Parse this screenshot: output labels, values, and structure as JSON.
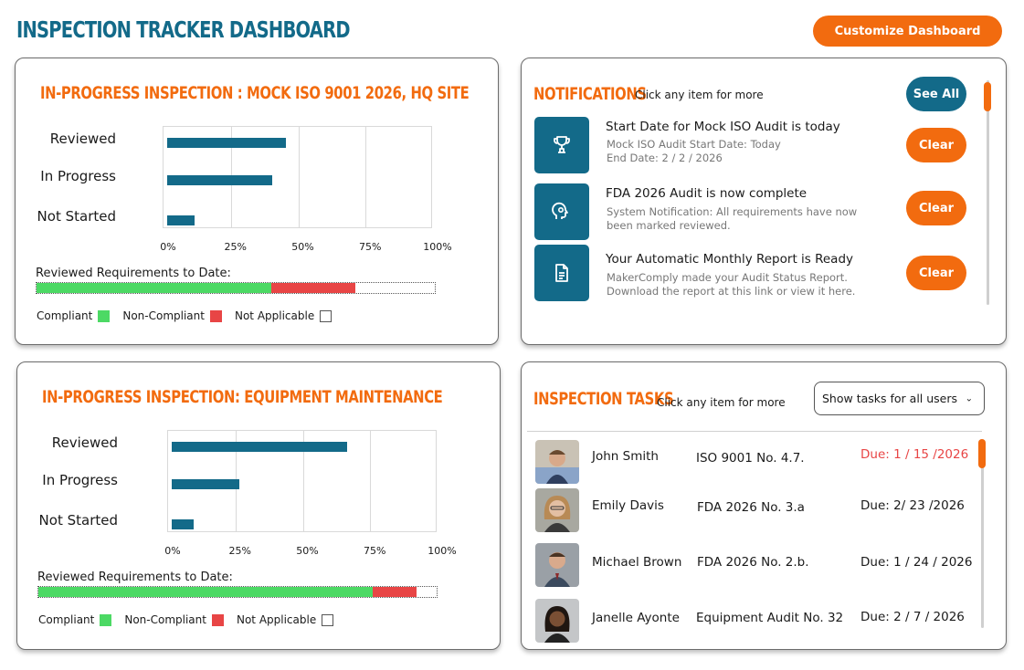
{
  "header": {
    "title": "INSPECTION TRACKER DASHBOARD",
    "customize_label": "Customize Dashboard"
  },
  "colors": {
    "brand_teal": "#136a89",
    "accent_orange": "#f26b0f",
    "compliant_green": "#4cd964",
    "non_compliant_red": "#e84545",
    "overdue_red": "#e84545"
  },
  "chart_data": [
    {
      "type": "bar",
      "orientation": "horizontal",
      "title": "IN-PROGRESS INSPECTION : MOCK ISO 9001 2026, HQ SITE",
      "categories": [
        "Reviewed",
        "In Progress",
        "Not Started"
      ],
      "values": [
        44,
        39,
        10
      ],
      "xlim": [
        0,
        100
      ],
      "x_ticks": [
        "0%",
        "25%",
        "50%",
        "75%",
        "100%"
      ],
      "grid": true,
      "requirements": {
        "label": "Reviewed Requirements to Date:",
        "compliant": 59,
        "non_compliant": 21,
        "not_applicable": 20
      },
      "legend": [
        "Compliant",
        "Non-Compliant",
        "Not Applicable"
      ]
    },
    {
      "type": "bar",
      "orientation": "horizontal",
      "title": "IN-PROGRESS INSPECTION: EQUIPMENT MAINTENANCE",
      "categories": [
        "Reviewed",
        "In Progress",
        "Not Started"
      ],
      "values": [
        65,
        25,
        8
      ],
      "xlim": [
        0,
        100
      ],
      "x_ticks": [
        "0%",
        "25%",
        "50%",
        "75%",
        "100%"
      ],
      "grid": true,
      "requirements": {
        "label": "Reviewed Requirements to Date:",
        "compliant": 84,
        "non_compliant": 11,
        "not_applicable": 5
      },
      "legend": [
        "Compliant",
        "Non-Compliant",
        "Not Applicable"
      ]
    }
  ],
  "notifications": {
    "title": "NOTIFICATIONS",
    "hint": "Click any item for more",
    "see_all_label": "See All",
    "clear_label": "Clear",
    "items": [
      {
        "icon": "trophy-icon",
        "title": "Start Date for Mock ISO Audit is today",
        "body": "Mock ISO Audit Start Date: Today\nEnd Date: 2 / 2 / 2026"
      },
      {
        "icon": "brain-gear-icon",
        "title": "FDA 2026 Audit is now complete",
        "body": "System Notification: All requirements have now been marked reviewed."
      },
      {
        "icon": "document-icon",
        "title": "Your Automatic Monthly Report is Ready",
        "body": "MakerComply made your Audit Status Report. Download the report at this link or view it here."
      }
    ]
  },
  "tasks": {
    "title": "INSPECTION TASKS",
    "hint": "Click any item for more",
    "filter_value": "Show tasks for all users",
    "rows": [
      {
        "name": "John Smith",
        "task": "ISO 9001 No. 4.7.",
        "due": "Due: 1 / 15 /2026",
        "overdue": true
      },
      {
        "name": "Emily Davis",
        "task": "FDA 2026 No. 3.a",
        "due": "Due: 2/ 23 /2026",
        "overdue": false
      },
      {
        "name": "Michael Brown",
        "task": "FDA 2026 No. 2.b.",
        "due": "Due: 1 / 24 / 2026",
        "overdue": false
      },
      {
        "name": "Janelle Ayonte",
        "task": "Equipment Audit No. 32",
        "due": "Due: 2 / 7 / 2026",
        "overdue": false
      }
    ]
  }
}
